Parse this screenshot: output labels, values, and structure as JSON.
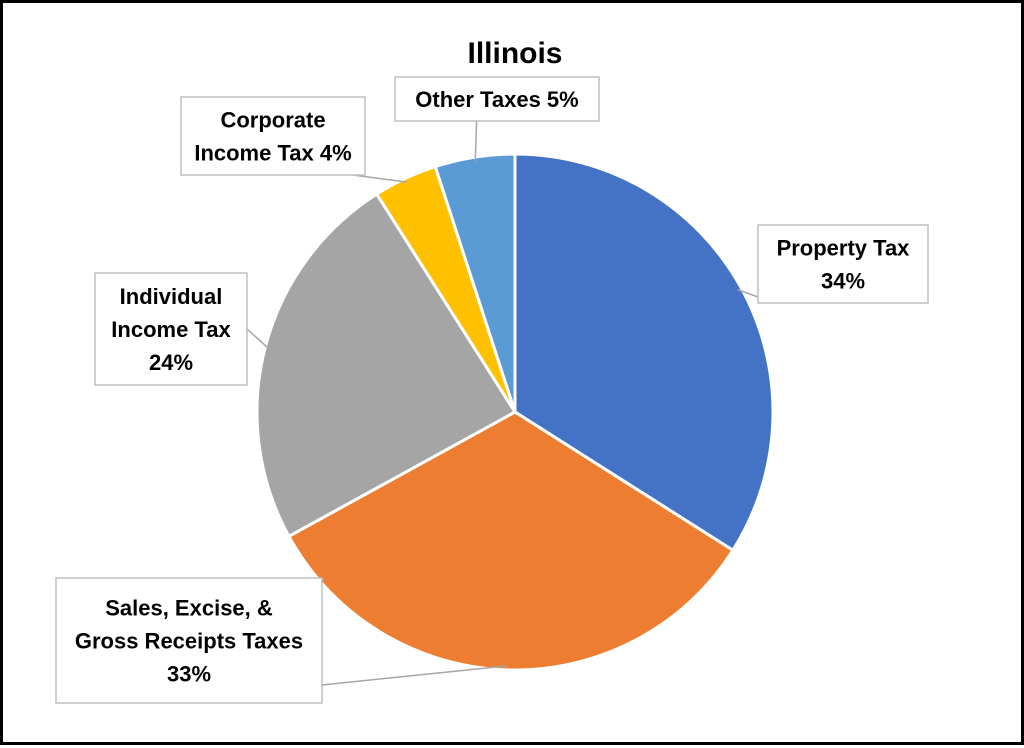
{
  "chart_data": {
    "type": "pie",
    "title": "Illinois",
    "slices": [
      {
        "label": "Property Tax",
        "value": 34,
        "color": "#4472c4",
        "label_lines": [
          "Property Tax",
          "34%"
        ]
      },
      {
        "label": "Sales, Excise, & Gross Receipts Taxes",
        "value": 33,
        "color": "#ed7d31",
        "label_lines": [
          "Sales, Excise, &",
          "Gross Receipts Taxes",
          "33%"
        ]
      },
      {
        "label": "Individual Income Tax",
        "value": 24,
        "color": "#a5a5a5",
        "label_lines": [
          "Individual",
          "Income Tax",
          "24%"
        ]
      },
      {
        "label": "Corporate Income Tax",
        "value": 4,
        "color": "#ffc000",
        "label_lines": [
          "Corporate",
          "Income Tax 4%"
        ]
      },
      {
        "label": "Other Taxes",
        "value": 5,
        "color": "#5b9bd5",
        "label_lines": [
          "Other Taxes 5%"
        ]
      }
    ],
    "legend": "none"
  }
}
